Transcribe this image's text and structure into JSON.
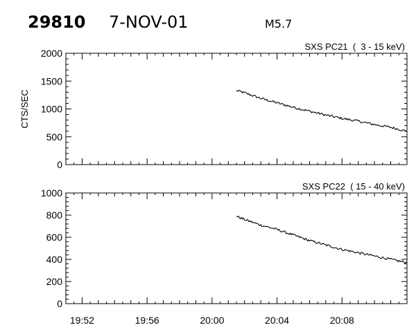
{
  "header": {
    "event_id": "29810",
    "date": "7-NOV-01",
    "flare_class": "M5.7"
  },
  "chart_data": [
    {
      "type": "line",
      "title": "SXS PC21  (  3 - 15 keV)",
      "ylabel": "CTS/SEC",
      "xlabel": "",
      "xlim": [
        "19:51",
        "20:12"
      ],
      "ylim": [
        0,
        2000
      ],
      "yticks": [
        0,
        500,
        1000,
        1500,
        2000
      ],
      "xticks": [
        "19:52",
        "19:56",
        "20:00",
        "20:04",
        "20:08"
      ],
      "grid": false,
      "series": [
        {
          "x": [
            "20:01.5",
            "20:02",
            "20:03",
            "20:04",
            "20:05",
            "20:06",
            "20:07",
            "20:08",
            "20:09",
            "20:10",
            "20:11",
            "20:12"
          ],
          "y": [
            1330,
            1290,
            1190,
            1110,
            1030,
            960,
            890,
            830,
            780,
            720,
            670,
            600
          ]
        }
      ]
    },
    {
      "type": "line",
      "title": "SXS PC22  ( 15 - 40 keV)",
      "ylabel": "",
      "xlabel": "",
      "xlim": [
        "19:51",
        "20:12"
      ],
      "ylim": [
        0,
        1000
      ],
      "yticks": [
        0,
        200,
        400,
        600,
        800,
        1000
      ],
      "xticks": [
        "19:52",
        "19:56",
        "20:00",
        "20:04",
        "20:08"
      ],
      "grid": false,
      "series": [
        {
          "x": [
            "20:01.5",
            "20:02",
            "20:03",
            "20:04",
            "20:05",
            "20:06",
            "20:07",
            "20:08",
            "20:09",
            "20:10",
            "20:11",
            "20:12"
          ],
          "y": [
            790,
            760,
            710,
            670,
            620,
            570,
            530,
            490,
            460,
            430,
            400,
            370
          ]
        }
      ]
    }
  ]
}
